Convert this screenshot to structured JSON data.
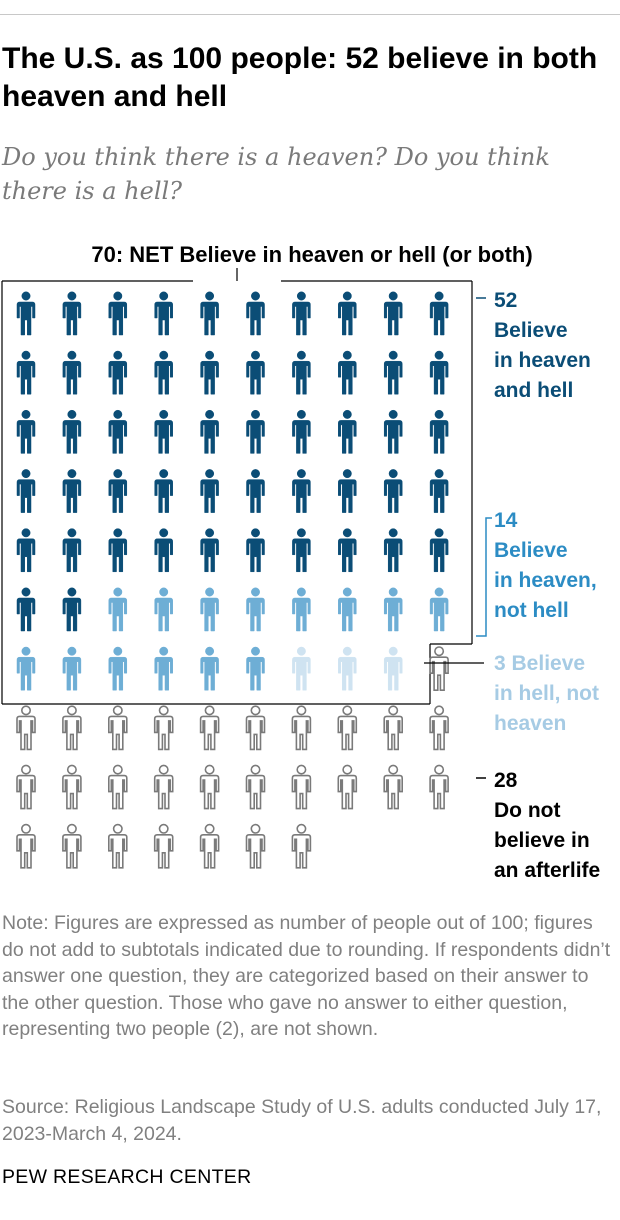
{
  "title": "The U.S. as 100 people: 52 believe in both heaven and hell",
  "subtitle": "Do you think there is a heaven? Do you think there is a hell?",
  "note": "Note: Figures are expressed as number of people out of 100; figures do not add to subtotals indicated due to rounding. If respondents didn’t answer one question, they are categorized based on their answer to the other question. Those who gave no answer to either question, representing two people (2), are not shown.",
  "source": "Source: Religious Landscape Study of U.S. adults conducted July 17, 2023-March 4, 2024.",
  "credit": "PEW RESEARCH CENTER",
  "chart_data": {
    "type": "icon-array",
    "total_people": 100,
    "icons_per_row": 10,
    "net_bracket": {
      "value": 70,
      "label": "70: NET Believe in heaven or hell (or both)"
    },
    "categories": [
      {
        "value": 52,
        "label_lines": [
          "52",
          "Believe",
          "in heaven",
          "and hell"
        ],
        "fill": "#0b4d76",
        "stroke": "#0b4d76",
        "label_color": "#0b4d76"
      },
      {
        "value": 14,
        "label_lines": [
          "14",
          "Believe",
          "in heaven,",
          "not hell"
        ],
        "fill": "#6eaed5",
        "stroke": "#6eaed5",
        "label_color": "#2c8cc4"
      },
      {
        "value": 3,
        "label_lines": [
          "3 Believe",
          "in hell, not",
          "heaven"
        ],
        "fill": "#cfe3f1",
        "stroke": "#cfe3f1",
        "label_color": "#a6cbe4"
      },
      {
        "value": 28,
        "label_lines": [
          "28",
          "Do not",
          "believe in",
          "an afterlife"
        ],
        "fill": "#ffffff",
        "stroke": "#7a7a7a",
        "label_color": "#000000"
      }
    ]
  }
}
